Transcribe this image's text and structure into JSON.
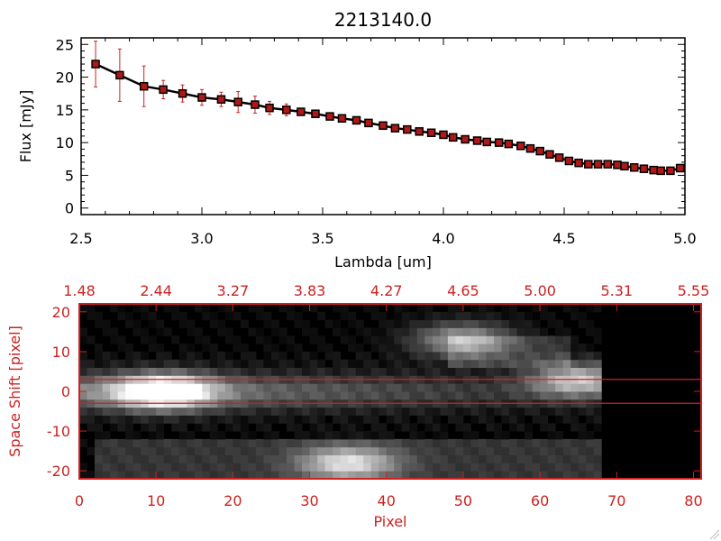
{
  "chart_data": [
    {
      "type": "line",
      "title": "2213140.0",
      "xlabel": "Lambda [um]",
      "ylabel": "Flux [mJy]",
      "xlim": [
        2.5,
        5.0
      ],
      "ylim": [
        -1,
        26
      ],
      "xticks": [
        "2.5",
        "3.0",
        "3.5",
        "4.0",
        "4.5",
        "5.0"
      ],
      "yticks": [
        "0",
        "5",
        "10",
        "15",
        "20",
        "25"
      ],
      "grid": false,
      "series": [
        {
          "marker": "square",
          "line_color": "#000000",
          "marker_color": "#b01818",
          "errorbar_color": "#cc2222",
          "x": [
            2.56,
            2.66,
            2.76,
            2.84,
            2.92,
            3.0,
            3.08,
            3.15,
            3.22,
            3.28,
            3.35,
            3.41,
            3.47,
            3.53,
            3.58,
            3.64,
            3.69,
            3.75,
            3.8,
            3.85,
            3.9,
            3.95,
            4.0,
            4.04,
            4.09,
            4.14,
            4.18,
            4.23,
            4.27,
            4.32,
            4.36,
            4.4,
            4.44,
            4.48,
            4.52,
            4.56,
            4.6,
            4.64,
            4.68,
            4.72,
            4.75,
            4.79,
            4.83,
            4.87,
            4.9,
            4.94,
            4.98
          ],
          "y": [
            22.0,
            20.3,
            18.6,
            18.1,
            17.5,
            16.9,
            16.6,
            16.2,
            15.8,
            15.3,
            15.0,
            14.7,
            14.4,
            14.0,
            13.7,
            13.4,
            13.0,
            12.6,
            12.2,
            12.0,
            11.7,
            11.5,
            11.2,
            10.8,
            10.5,
            10.3,
            10.1,
            10.0,
            9.8,
            9.5,
            9.1,
            8.7,
            8.2,
            7.7,
            7.2,
            6.9,
            6.7,
            6.7,
            6.7,
            6.6,
            6.4,
            6.2,
            6.0,
            5.8,
            5.7,
            5.7,
            6.1
          ],
          "yerr": [
            3.5,
            4.0,
            3.1,
            1.4,
            1.3,
            1.2,
            1.1,
            1.6,
            1.3,
            1.0,
            0.9,
            0.5,
            0.4,
            0.4,
            0.3,
            0.3,
            0.3,
            0.3,
            0.3,
            0.3,
            0.3,
            0.3,
            0.3,
            0.3,
            0.3,
            0.3,
            0.3,
            0.3,
            0.3,
            0.3,
            0.3,
            0.3,
            0.3,
            0.3,
            0.3,
            0.3,
            0.3,
            0.3,
            0.3,
            0.3,
            0.3,
            0.3,
            0.3,
            0.3,
            0.3,
            0.3,
            0.3
          ]
        }
      ]
    },
    {
      "type": "heatmap",
      "xlabel": "Pixel",
      "ylabel": "Space Shift [pixel]",
      "xlim": [
        0,
        81
      ],
      "ylim": [
        -22,
        22
      ],
      "xticks": [
        "0",
        "10",
        "20",
        "30",
        "40",
        "50",
        "60",
        "70",
        "80"
      ],
      "yticks": [
        "-20",
        "-10",
        "0",
        "10",
        "20"
      ],
      "top_axis_ticks": [
        "1.48",
        "2.44",
        "3.27",
        "3.83",
        "4.27",
        "4.65",
        "5.00",
        "5.31",
        "5.55"
      ],
      "extraction_window": [
        -3,
        3
      ],
      "colormap": "grayscale",
      "data_extent_pixel": [
        0,
        68
      ],
      "blobs": [
        {
          "center": [
            11,
            0
          ],
          "peak": 1.0
        },
        {
          "center": [
            50,
            13
          ],
          "peak": 0.62
        },
        {
          "center": [
            65,
            3
          ],
          "peak": 0.7
        },
        {
          "center": [
            35,
            -18
          ],
          "peak": 0.7
        }
      ],
      "colors": {
        "axis": "#cc2222",
        "window_line": "#cc2222"
      }
    }
  ]
}
